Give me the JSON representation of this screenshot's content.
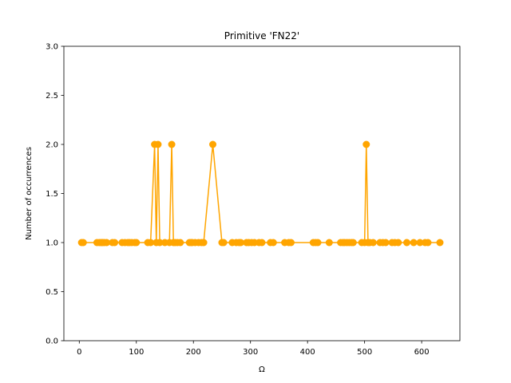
{
  "chart_data": {
    "type": "line",
    "title": "Primitive 'FN22'",
    "xlabel": "Ω",
    "ylabel": "Number of occurrences",
    "xlim": [
      -27,
      667
    ],
    "ylim": [
      0,
      3
    ],
    "xticks": [
      "0",
      "100",
      "200",
      "300",
      "400",
      "500",
      "600"
    ],
    "xtick_values": [
      0,
      100,
      200,
      300,
      400,
      500,
      600
    ],
    "yticks": [
      "0.0",
      "0.5",
      "1.0",
      "1.5",
      "2.0",
      "2.5",
      "3.0"
    ],
    "ytick_values": [
      0,
      0.5,
      1,
      1.5,
      2,
      2.5,
      3
    ],
    "grid": false,
    "series": [
      {
        "color": "#ffa500",
        "x": [
          4,
          7,
          31,
          35,
          38,
          41,
          44,
          48,
          58,
          62,
          75,
          80,
          85,
          88,
          92,
          97,
          100,
          120,
          125,
          132,
          135,
          138,
          141,
          150,
          158,
          162,
          165,
          168,
          172,
          177,
          193,
          196,
          198,
          203,
          209,
          214,
          218,
          234,
          250,
          253,
          268,
          275,
          280,
          283,
          293,
          297,
          302,
          307,
          315,
          320,
          335,
          340,
          360,
          367,
          371,
          410,
          414,
          418,
          438,
          458,
          462,
          465,
          469,
          473,
          477,
          480,
          495,
          500,
          503,
          506,
          509,
          515,
          527,
          532,
          537,
          548,
          553,
          559,
          574,
          586,
          597,
          606,
          611,
          632
        ],
        "y": [
          1,
          1,
          1,
          1,
          1,
          1,
          1,
          1,
          1,
          1,
          1,
          1,
          1,
          1,
          1,
          1,
          1,
          1,
          1,
          2,
          1,
          2,
          1,
          1,
          1,
          2,
          1,
          1,
          1,
          1,
          1,
          1,
          1,
          1,
          1,
          1,
          1,
          2,
          1,
          1,
          1,
          1,
          1,
          1,
          1,
          1,
          1,
          1,
          1,
          1,
          1,
          1,
          1,
          1,
          1,
          1,
          1,
          1,
          1,
          1,
          1,
          1,
          1,
          1,
          1,
          1,
          1,
          1,
          2,
          1,
          1,
          1,
          1,
          1,
          1,
          1,
          1,
          1,
          1,
          1,
          1,
          1,
          1,
          1
        ]
      }
    ]
  }
}
